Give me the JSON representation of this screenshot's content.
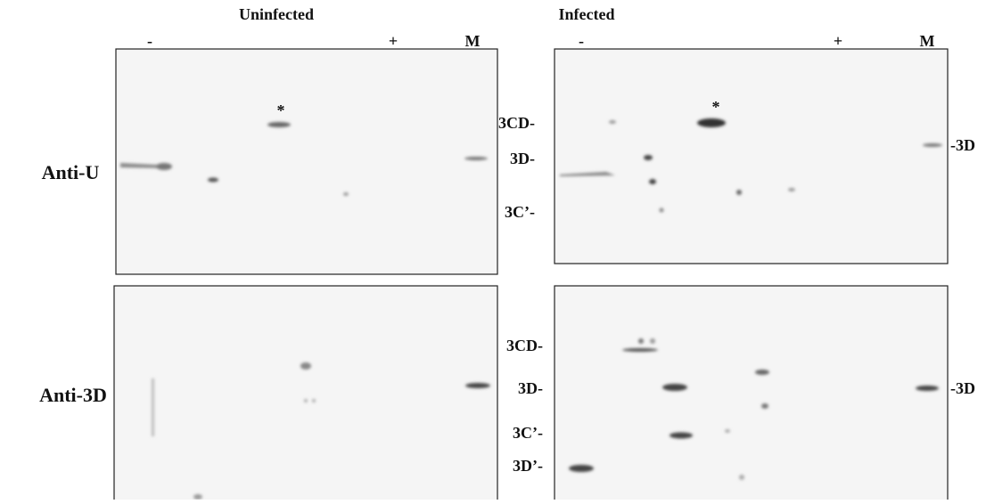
{
  "columns": [
    "Uninfected",
    "Infected"
  ],
  "ph_markers": {
    "left": [
      "-",
      "+",
      "M"
    ],
    "right": [
      "-",
      "+",
      "M"
    ]
  },
  "rows": [
    "Anti-U",
    "Anti-3D"
  ],
  "asterisks": [
    "*",
    "*"
  ],
  "top_labels": {
    "middle": [
      "3CD-",
      "3D-",
      "3C’-"
    ],
    "right": [
      "-3D"
    ]
  },
  "bottom_labels": {
    "middle": [
      "3CD-",
      "3D-",
      "3C’-",
      "3D’-"
    ],
    "right": [
      "-3D"
    ]
  }
}
